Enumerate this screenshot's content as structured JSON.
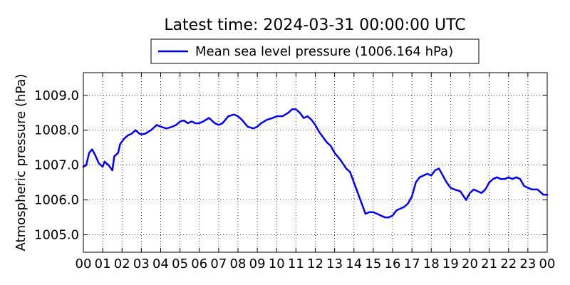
{
  "chart_data": {
    "type": "line",
    "title": "Latest time: 2024-03-31 00:00:00 UTC",
    "xlabel": "",
    "ylabel": "Atmospheric pressure (hPa)",
    "xlim": [
      0,
      24
    ],
    "ylim": [
      1004.5,
      1009.65
    ],
    "grid": true,
    "legend_position": "top",
    "xticks": [
      0,
      1,
      2,
      3,
      4,
      5,
      6,
      7,
      8,
      9,
      10,
      11,
      12,
      13,
      14,
      15,
      16,
      17,
      18,
      19,
      20,
      21,
      22,
      23,
      24
    ],
    "xtick_labels": [
      "00",
      "01",
      "02",
      "03",
      "04",
      "05",
      "06",
      "07",
      "08",
      "09",
      "10",
      "11",
      "12",
      "13",
      "14",
      "15",
      "16",
      "17",
      "18",
      "19",
      "20",
      "21",
      "22",
      "23",
      "00"
    ],
    "yticks": [
      1005.0,
      1006.0,
      1007.0,
      1008.0,
      1009.0
    ],
    "ytick_labels": [
      "1005.0",
      "1006.0",
      "1007.0",
      "1008.0",
      "1009.0"
    ],
    "series": [
      {
        "name": "Mean sea level pressure (1006.164 hPa)",
        "color": "#0000ff",
        "x": [
          0,
          0.15,
          0.3,
          0.45,
          0.6,
          0.8,
          1.0,
          1.1,
          1.3,
          1.5,
          1.6,
          1.8,
          1.9,
          2.1,
          2.3,
          2.5,
          2.7,
          2.9,
          3.0,
          3.2,
          3.5,
          3.8,
          4.0,
          4.3,
          4.6,
          4.8,
          5.0,
          5.2,
          5.4,
          5.6,
          5.8,
          6.0,
          6.2,
          6.5,
          6.8,
          7.0,
          7.2,
          7.5,
          7.8,
          8.0,
          8.2,
          8.5,
          8.8,
          9.0,
          9.2,
          9.5,
          9.8,
          10.0,
          10.3,
          10.6,
          10.8,
          11.0,
          11.2,
          11.4,
          11.6,
          11.8,
          12.0,
          12.2,
          12.4,
          12.6,
          12.8,
          13.0,
          13.3,
          13.6,
          13.8,
          14.0,
          14.2,
          14.4,
          14.6,
          14.8,
          15.0,
          15.2,
          15.4,
          15.6,
          15.8,
          16.0,
          16.2,
          16.4,
          16.6,
          16.8,
          17.0,
          17.2,
          17.4,
          17.6,
          17.8,
          18.0,
          18.2,
          18.4,
          18.6,
          18.8,
          19.0,
          19.2,
          19.5,
          19.8,
          20.0,
          20.2,
          20.4,
          20.6,
          20.8,
          21.0,
          21.2,
          21.4,
          21.6,
          21.8,
          22.0,
          22.2,
          22.4,
          22.6,
          22.8,
          23.0,
          23.2,
          23.5,
          23.8,
          24.0
        ],
        "values": [
          1006.95,
          1007.0,
          1007.35,
          1007.45,
          1007.3,
          1007.05,
          1006.95,
          1007.1,
          1007.0,
          1006.85,
          1007.25,
          1007.35,
          1007.6,
          1007.75,
          1007.85,
          1007.9,
          1008.0,
          1007.9,
          1007.88,
          1007.9,
          1008.0,
          1008.15,
          1008.1,
          1008.05,
          1008.1,
          1008.15,
          1008.25,
          1008.28,
          1008.2,
          1008.25,
          1008.2,
          1008.2,
          1008.25,
          1008.35,
          1008.2,
          1008.15,
          1008.2,
          1008.4,
          1008.45,
          1008.4,
          1008.3,
          1008.1,
          1008.05,
          1008.1,
          1008.2,
          1008.3,
          1008.35,
          1008.4,
          1008.4,
          1008.5,
          1008.6,
          1008.6,
          1008.5,
          1008.35,
          1008.4,
          1008.3,
          1008.15,
          1007.95,
          1007.8,
          1007.65,
          1007.55,
          1007.35,
          1007.15,
          1006.9,
          1006.8,
          1006.5,
          1006.2,
          1005.9,
          1005.6,
          1005.65,
          1005.65,
          1005.6,
          1005.55,
          1005.5,
          1005.5,
          1005.55,
          1005.7,
          1005.75,
          1005.8,
          1005.9,
          1006.1,
          1006.5,
          1006.65,
          1006.7,
          1006.75,
          1006.7,
          1006.85,
          1006.9,
          1006.7,
          1006.5,
          1006.35,
          1006.3,
          1006.25,
          1006.0,
          1006.2,
          1006.3,
          1006.25,
          1006.2,
          1006.3,
          1006.5,
          1006.6,
          1006.65,
          1006.6,
          1006.6,
          1006.65,
          1006.6,
          1006.65,
          1006.6,
          1006.4,
          1006.35,
          1006.3,
          1006.3,
          1006.15,
          1006.15
        ]
      }
    ]
  }
}
